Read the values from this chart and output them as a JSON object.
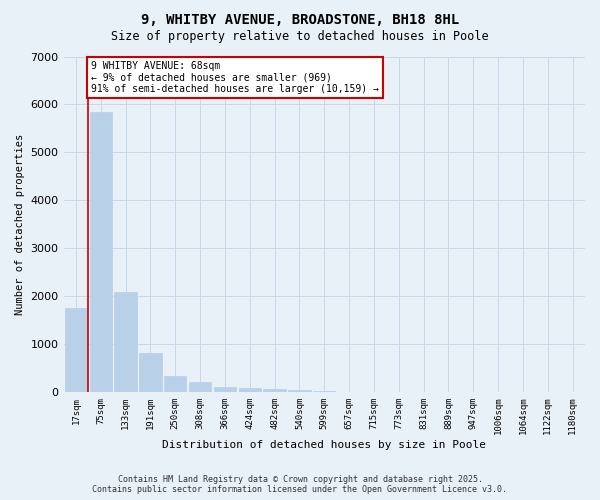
{
  "title": "9, WHITBY AVENUE, BROADSTONE, BH18 8HL",
  "subtitle": "Size of property relative to detached houses in Poole",
  "xlabel": "Distribution of detached houses by size in Poole",
  "ylabel": "Number of detached properties",
  "categories": [
    "17sqm",
    "75sqm",
    "133sqm",
    "191sqm",
    "250sqm",
    "308sqm",
    "366sqm",
    "424sqm",
    "482sqm",
    "540sqm",
    "599sqm",
    "657sqm",
    "715sqm",
    "773sqm",
    "831sqm",
    "889sqm",
    "947sqm",
    "1006sqm",
    "1064sqm",
    "1122sqm",
    "1180sqm"
  ],
  "values": [
    1760,
    5850,
    2080,
    820,
    340,
    210,
    110,
    80,
    60,
    50,
    10,
    5,
    3,
    2,
    1,
    1,
    1,
    1,
    0,
    0,
    0
  ],
  "bar_color": "#b8d0e8",
  "annotation_text": "9 WHITBY AVENUE: 68sqm\n← 9% of detached houses are smaller (969)\n91% of semi-detached houses are larger (10,159) →",
  "annotation_box_color": "#cc0000",
  "vline_color": "#cc0000",
  "vline_x_idx": 1,
  "ylim": [
    0,
    7000
  ],
  "yticks": [
    0,
    1000,
    2000,
    3000,
    4000,
    5000,
    6000,
    7000
  ],
  "grid_color": "#c8d8ea",
  "background_color": "#e8f0f8",
  "footer_line1": "Contains HM Land Registry data © Crown copyright and database right 2025.",
  "footer_line2": "Contains public sector information licensed under the Open Government Licence v3.0."
}
